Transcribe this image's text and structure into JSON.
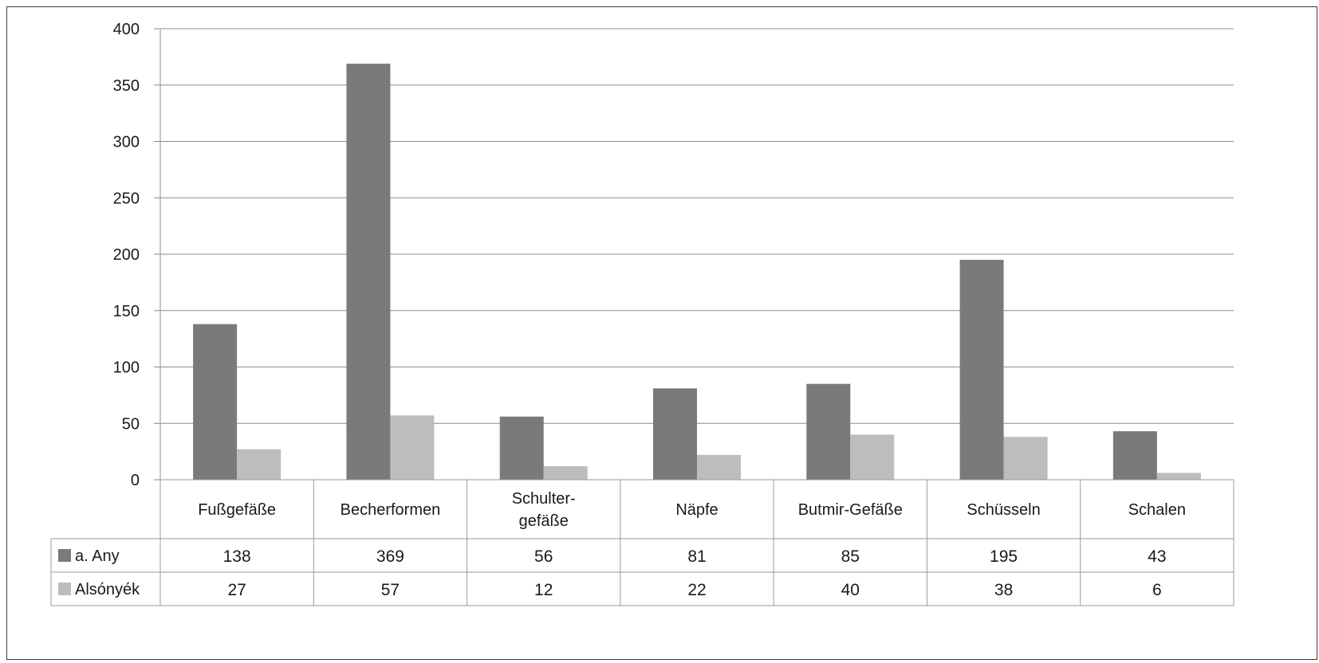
{
  "chart_data": {
    "type": "bar",
    "categories": [
      [
        "Fußgefäße"
      ],
      [
        "Becherformen"
      ],
      [
        "Schulter-",
        "gefäße"
      ],
      [
        "Näpfe"
      ],
      [
        "Butmir-Gefäße"
      ],
      [
        "Schüsseln"
      ],
      [
        "Schalen"
      ]
    ],
    "series": [
      {
        "name": "a. Any",
        "values": [
          138,
          369,
          56,
          81,
          85,
          195,
          43
        ],
        "color": "#7a7a7a"
      },
      {
        "name": "Alsónyék",
        "values": [
          27,
          57,
          12,
          22,
          40,
          38,
          6
        ],
        "color": "#bdbdbd"
      }
    ],
    "yticks": [
      "0",
      "50",
      "100",
      "150",
      "200",
      "250",
      "300",
      "350",
      "400"
    ],
    "ylim": [
      0,
      400
    ],
    "grid": true,
    "data_table": true,
    "legend": "in data table"
  }
}
